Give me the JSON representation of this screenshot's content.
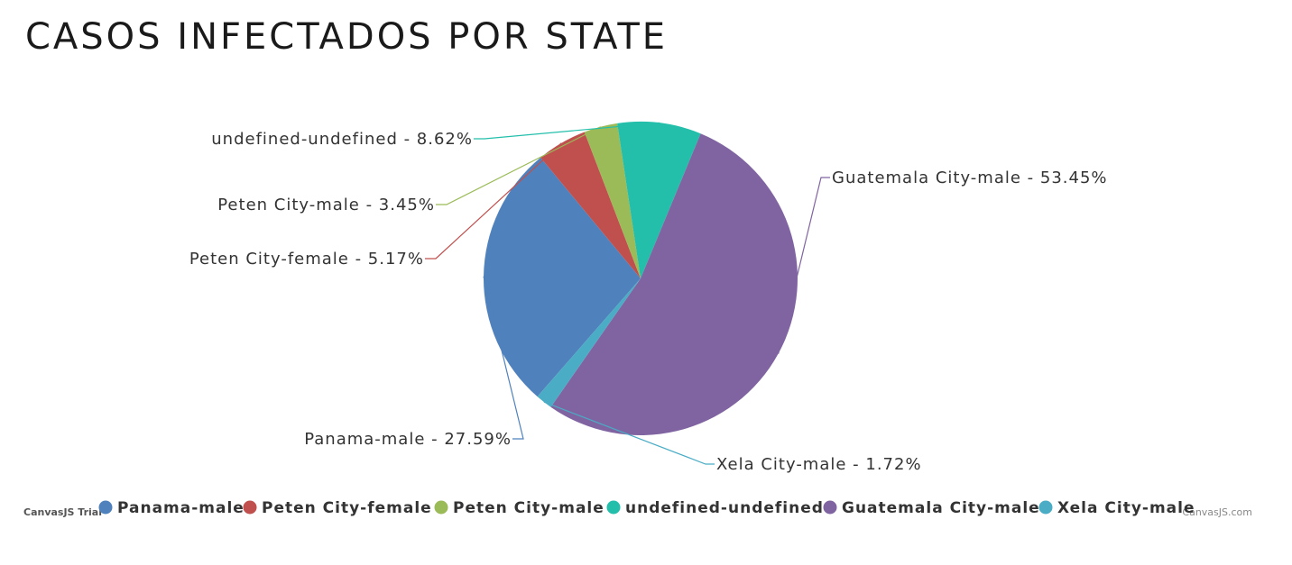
{
  "header": {
    "title": "CASOS INFECTADOS POR STATE"
  },
  "chart_data": {
    "type": "pie",
    "title": "CASOS INFECTADOS POR STATE",
    "legend_position": "bottom",
    "slices": [
      {
        "name": "Panama-male",
        "value": 27.59,
        "label": "Panama-male - 27.59%",
        "color": "#4f81bc"
      },
      {
        "name": "Peten City-female",
        "value": 5.17,
        "label": "Peten City-female - 5.17%",
        "color": "#c0504e"
      },
      {
        "name": "Peten City-male",
        "value": 3.45,
        "label": "Peten City-male - 3.45%",
        "color": "#9bbb58"
      },
      {
        "name": "undefined-undefined",
        "value": 8.62,
        "label": "undefined-undefined - 8.62%",
        "color": "#23bfaa"
      },
      {
        "name": "Guatemala City-male",
        "value": 53.45,
        "label": "Guatemala City-male - 53.45%",
        "color": "#8064a1"
      },
      {
        "name": "Xela City-male",
        "value": 1.72,
        "label": "Xela City-male - 1.72%",
        "color": "#4aacc5"
      }
    ]
  },
  "credits": {
    "left": "CanvasJS Trial",
    "right": "CanvasJS.com"
  }
}
